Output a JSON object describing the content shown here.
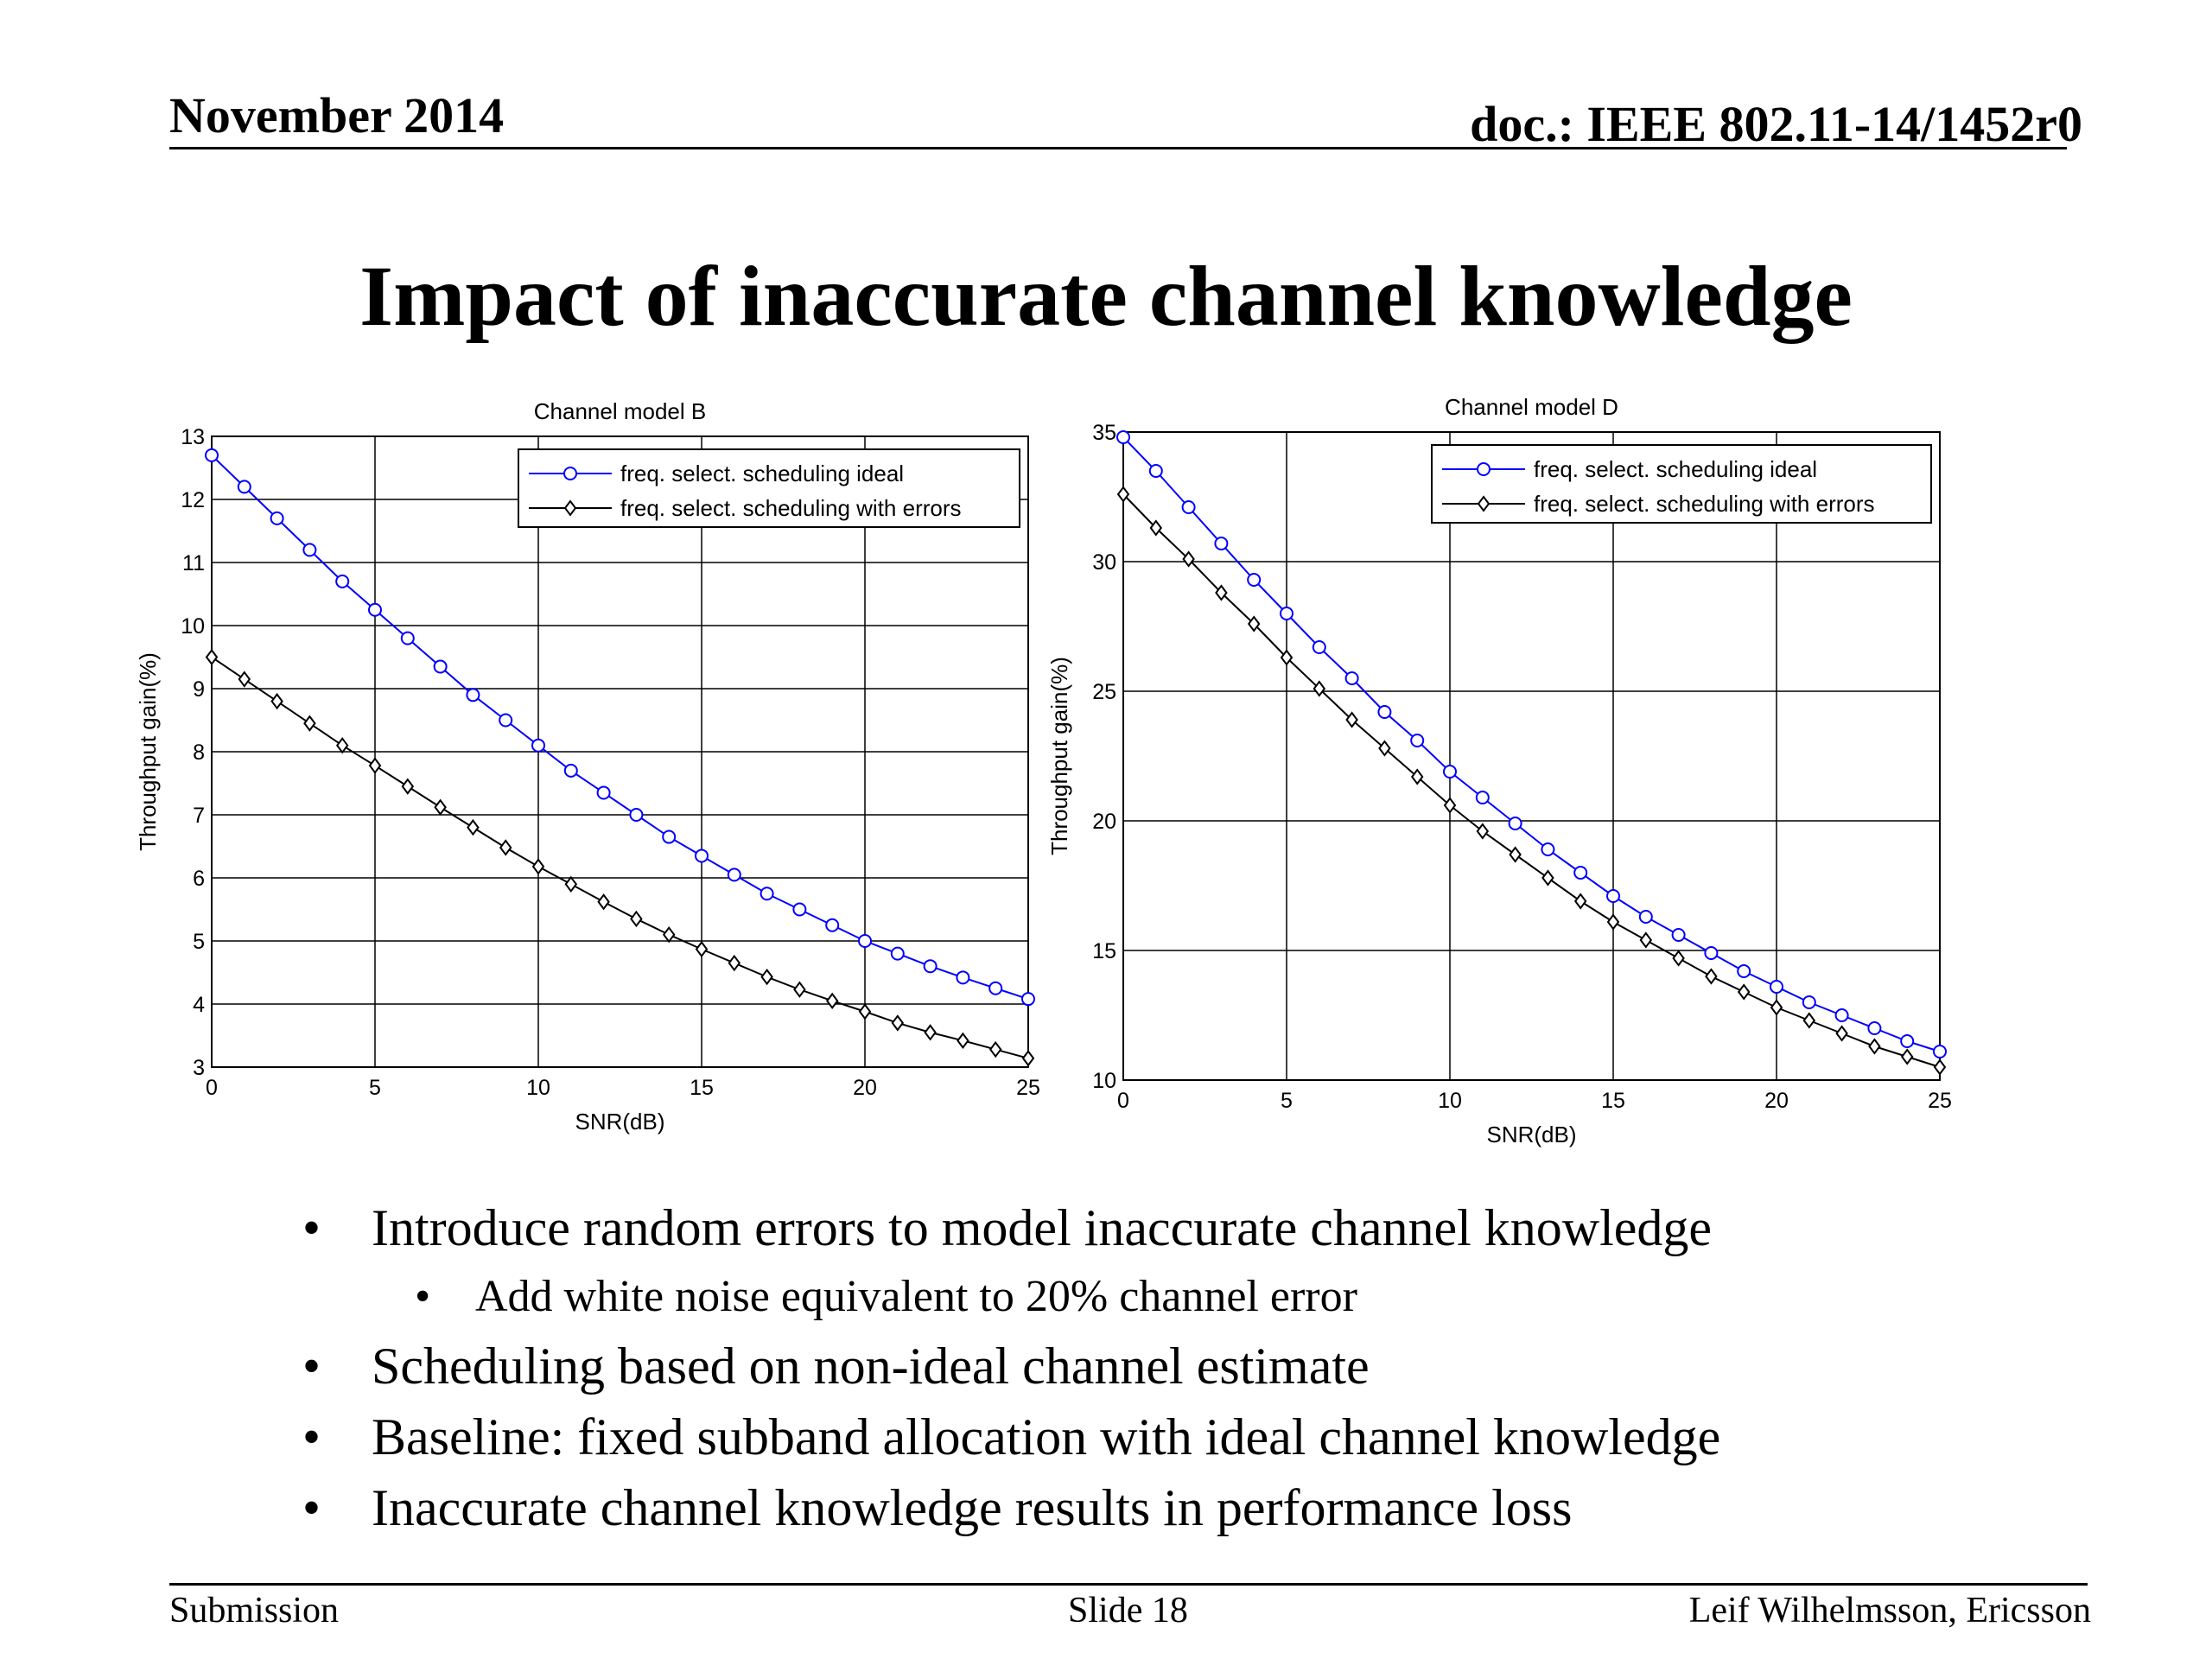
{
  "header": {
    "date": "November 2014",
    "doc": "doc.: IEEE 802.11-14/1452r0"
  },
  "slide_title": "Impact of inaccurate channel knowledge",
  "bullets": [
    {
      "text": "Introduce random errors to model inaccurate channel knowledge",
      "level": 1
    },
    {
      "text": "Add white noise equivalent to 20% channel error",
      "level": 2
    },
    {
      "text": "Scheduling based on non-ideal channel estimate",
      "level": 1
    },
    {
      "text": "Baseline: fixed subband allocation with ideal channel knowledge",
      "level": 1
    },
    {
      "text": "Inaccurate channel knowledge results in performance loss",
      "level": 1
    }
  ],
  "footer": {
    "left": "Submission",
    "center": "Slide 18",
    "right": "Leif Wilhelmsson, Ericsson"
  },
  "colors": {
    "ideal": "#0000ff",
    "errors": "#000000",
    "grid": "#000000"
  },
  "chart_data": [
    {
      "type": "line",
      "title": "Channel model B",
      "xlabel": "SNR(dB)",
      "ylabel": "Throughput gain(%)",
      "xlim": [
        0,
        25
      ],
      "ylim": [
        3,
        13
      ],
      "xticks": [
        0,
        5,
        10,
        15,
        20,
        25
      ],
      "yticks": [
        3,
        4,
        5,
        6,
        7,
        8,
        9,
        10,
        11,
        12,
        13
      ],
      "grid": true,
      "legend_position": "top-right",
      "x": [
        0,
        1,
        2,
        3,
        4,
        5,
        6,
        7,
        8,
        9,
        10,
        11,
        12,
        13,
        14,
        15,
        16,
        17,
        18,
        19,
        20,
        21,
        22,
        23,
        24,
        25
      ],
      "series": [
        {
          "name": "freq. select. scheduling ideal",
          "color": "#0000ff",
          "marker": "circle",
          "values": [
            12.7,
            12.2,
            11.7,
            11.2,
            10.7,
            10.25,
            9.8,
            9.35,
            8.9,
            8.5,
            8.1,
            7.7,
            7.35,
            7.0,
            6.65,
            6.35,
            6.05,
            5.75,
            5.5,
            5.25,
            5.0,
            4.8,
            4.6,
            4.42,
            4.25,
            4.08
          ]
        },
        {
          "name": "freq. select. scheduling with errors",
          "color": "#000000",
          "marker": "diamond",
          "values": [
            9.5,
            9.15,
            8.8,
            8.45,
            8.1,
            7.78,
            7.45,
            7.12,
            6.8,
            6.48,
            6.18,
            5.9,
            5.62,
            5.35,
            5.1,
            4.87,
            4.65,
            4.43,
            4.23,
            4.05,
            3.88,
            3.7,
            3.55,
            3.42,
            3.28,
            3.14
          ]
        }
      ]
    },
    {
      "type": "line",
      "title": "Channel model D",
      "xlabel": "SNR(dB)",
      "ylabel": "Throughput gain(%)",
      "xlim": [
        0,
        25
      ],
      "ylim": [
        10,
        35
      ],
      "xticks": [
        0,
        5,
        10,
        15,
        20,
        25
      ],
      "yticks": [
        10,
        15,
        20,
        25,
        30,
        35
      ],
      "grid": true,
      "legend_position": "top-right",
      "x": [
        0,
        1,
        2,
        3,
        4,
        5,
        6,
        7,
        8,
        9,
        10,
        11,
        12,
        13,
        14,
        15,
        16,
        17,
        18,
        19,
        20,
        21,
        22,
        23,
        24,
        25
      ],
      "series": [
        {
          "name": "freq. select. scheduling ideal",
          "color": "#0000ff",
          "marker": "circle",
          "values": [
            34.8,
            33.5,
            32.1,
            30.7,
            29.3,
            28.0,
            26.7,
            25.5,
            24.2,
            23.1,
            21.9,
            20.9,
            19.9,
            18.9,
            18.0,
            17.1,
            16.3,
            15.6,
            14.9,
            14.2,
            13.6,
            13.0,
            12.5,
            12.0,
            11.5,
            11.1
          ]
        },
        {
          "name": "freq. select. scheduling with errors",
          "color": "#000000",
          "marker": "diamond",
          "values": [
            32.6,
            31.3,
            30.1,
            28.8,
            27.6,
            26.3,
            25.1,
            23.9,
            22.8,
            21.7,
            20.6,
            19.6,
            18.7,
            17.8,
            16.9,
            16.1,
            15.4,
            14.7,
            14.0,
            13.4,
            12.8,
            12.3,
            11.8,
            11.3,
            10.9,
            10.5
          ]
        }
      ]
    }
  ]
}
